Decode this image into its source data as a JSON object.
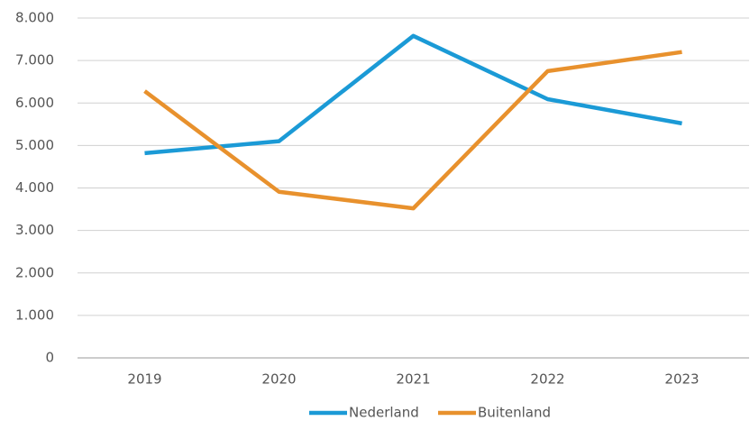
{
  "chart_data": {
    "type": "line",
    "categories": [
      "2019",
      "2020",
      "2021",
      "2022",
      "2023"
    ],
    "series": [
      {
        "name": "Nederland",
        "color": "#1b9ad6",
        "values": [
          4820,
          5100,
          7580,
          6090,
          5520
        ]
      },
      {
        "name": "Buitenland",
        "color": "#e8912d",
        "values": [
          6280,
          3910,
          3520,
          6750,
          7200
        ]
      }
    ],
    "ylim": [
      0,
      8000
    ],
    "yticks": [
      0,
      {
        "value": 1000,
        "label": "1.000"
      },
      {
        "value": 2000,
        "label": "2.000"
      },
      {
        "value": 3000,
        "label": "3.000"
      },
      {
        "value": 4000,
        "label": "4.000"
      },
      {
        "value": 5000,
        "label": "5.000"
      },
      {
        "value": 6000,
        "label": "6.000"
      },
      {
        "value": 7000,
        "label": "7.000"
      },
      {
        "value": 8000,
        "label": "8.000"
      }
    ],
    "grid": true,
    "legend": "bottom"
  }
}
